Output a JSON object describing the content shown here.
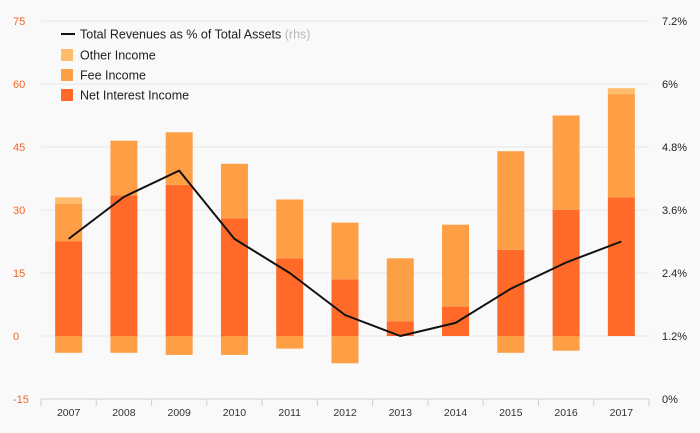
{
  "chart_data": {
    "type": "bar",
    "stacked": true,
    "categories": [
      "2007",
      "2008",
      "2009",
      "2010",
      "2011",
      "2012",
      "2013",
      "2014",
      "2015",
      "2016",
      "2017"
    ],
    "series": [
      {
        "name": "Net Interest Income",
        "color": "#ff6a28",
        "values": [
          22.5,
          33.5,
          36,
          28,
          18.5,
          13.5,
          3.5,
          7,
          20.5,
          30,
          33
        ]
      },
      {
        "name": "Fee Income",
        "color": "#ff9f45",
        "values": [
          9,
          13,
          12.5,
          13,
          14,
          13.5,
          15,
          19.5,
          23.5,
          22.5,
          24.5
        ],
        "negative_values": [
          -4,
          -4,
          -4.5,
          -4.5,
          -3,
          -6.5,
          0,
          0,
          -4,
          -3.5,
          0
        ]
      },
      {
        "name": "Other Income",
        "color": "#ffbc6a",
        "values": [
          1.5,
          0,
          0,
          0,
          0,
          0,
          0,
          0,
          0,
          0,
          1.5
        ]
      }
    ],
    "line_series": {
      "name": "Total Revenues as % of Total Assets",
      "note": "(rhs)",
      "axis": "right",
      "color": "#111111",
      "values": [
        3.05,
        3.85,
        4.35,
        3.05,
        2.4,
        1.6,
        1.2,
        1.45,
        2.1,
        2.6,
        3.0
      ]
    },
    "y_left": {
      "ylim": [
        -15,
        75
      ],
      "ticks": [
        "-15",
        "0",
        "15",
        "30",
        "45",
        "60",
        "75"
      ],
      "tick_values": [
        -15,
        0,
        15,
        30,
        45,
        60,
        75
      ],
      "color": "#f26522"
    },
    "y_right": {
      "ylim": [
        0,
        7.2
      ],
      "ticks": [
        "0%",
        "1.2%",
        "2.4%",
        "3.6%",
        "4.8%",
        "6%",
        "7.2%"
      ],
      "tick_values": [
        0,
        1.2,
        2.4,
        3.6,
        4.8,
        6,
        7.2
      ]
    },
    "legend_order": [
      "line",
      "Other Income",
      "Fee Income",
      "Net Interest Income"
    ],
    "legend_position": "top-left",
    "grid": true,
    "title": "",
    "xlabel": "",
    "ylabel": ""
  }
}
